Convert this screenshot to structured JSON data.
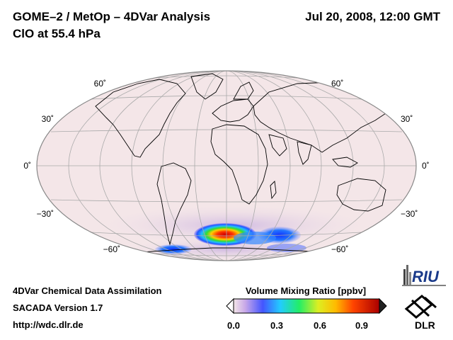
{
  "header": {
    "title_line1": "GOME–2 / MetOp – 4DVar Analysis",
    "title_line2": "ClO at 55.4 hPa",
    "datetime": "Jul 20, 2008, 12:00 GMT"
  },
  "map": {
    "projection": "Hammer-Aitoff global",
    "lat_labels_left": [
      "60˚",
      "30˚",
      "0˚",
      "−30˚",
      "−60˚"
    ],
    "lat_labels_right": [
      "60˚",
      "30˚",
      "0˚",
      "−30˚",
      "−60˚"
    ],
    "background_color": "#f4e6e8"
  },
  "colorbar": {
    "title": "Volume Mixing Ratio [ppbv]",
    "ticks": [
      "0.0",
      "0.3",
      "0.6",
      "0.9"
    ],
    "range": [
      0,
      1.0
    ]
  },
  "footer": {
    "line1": "4DVar Chemical Data Assimilation",
    "line2": "SACADA Version 1.7",
    "line3": "http://wdc.dlr.de"
  },
  "logos": {
    "riu": "RIU",
    "dlr": "DLR"
  }
}
